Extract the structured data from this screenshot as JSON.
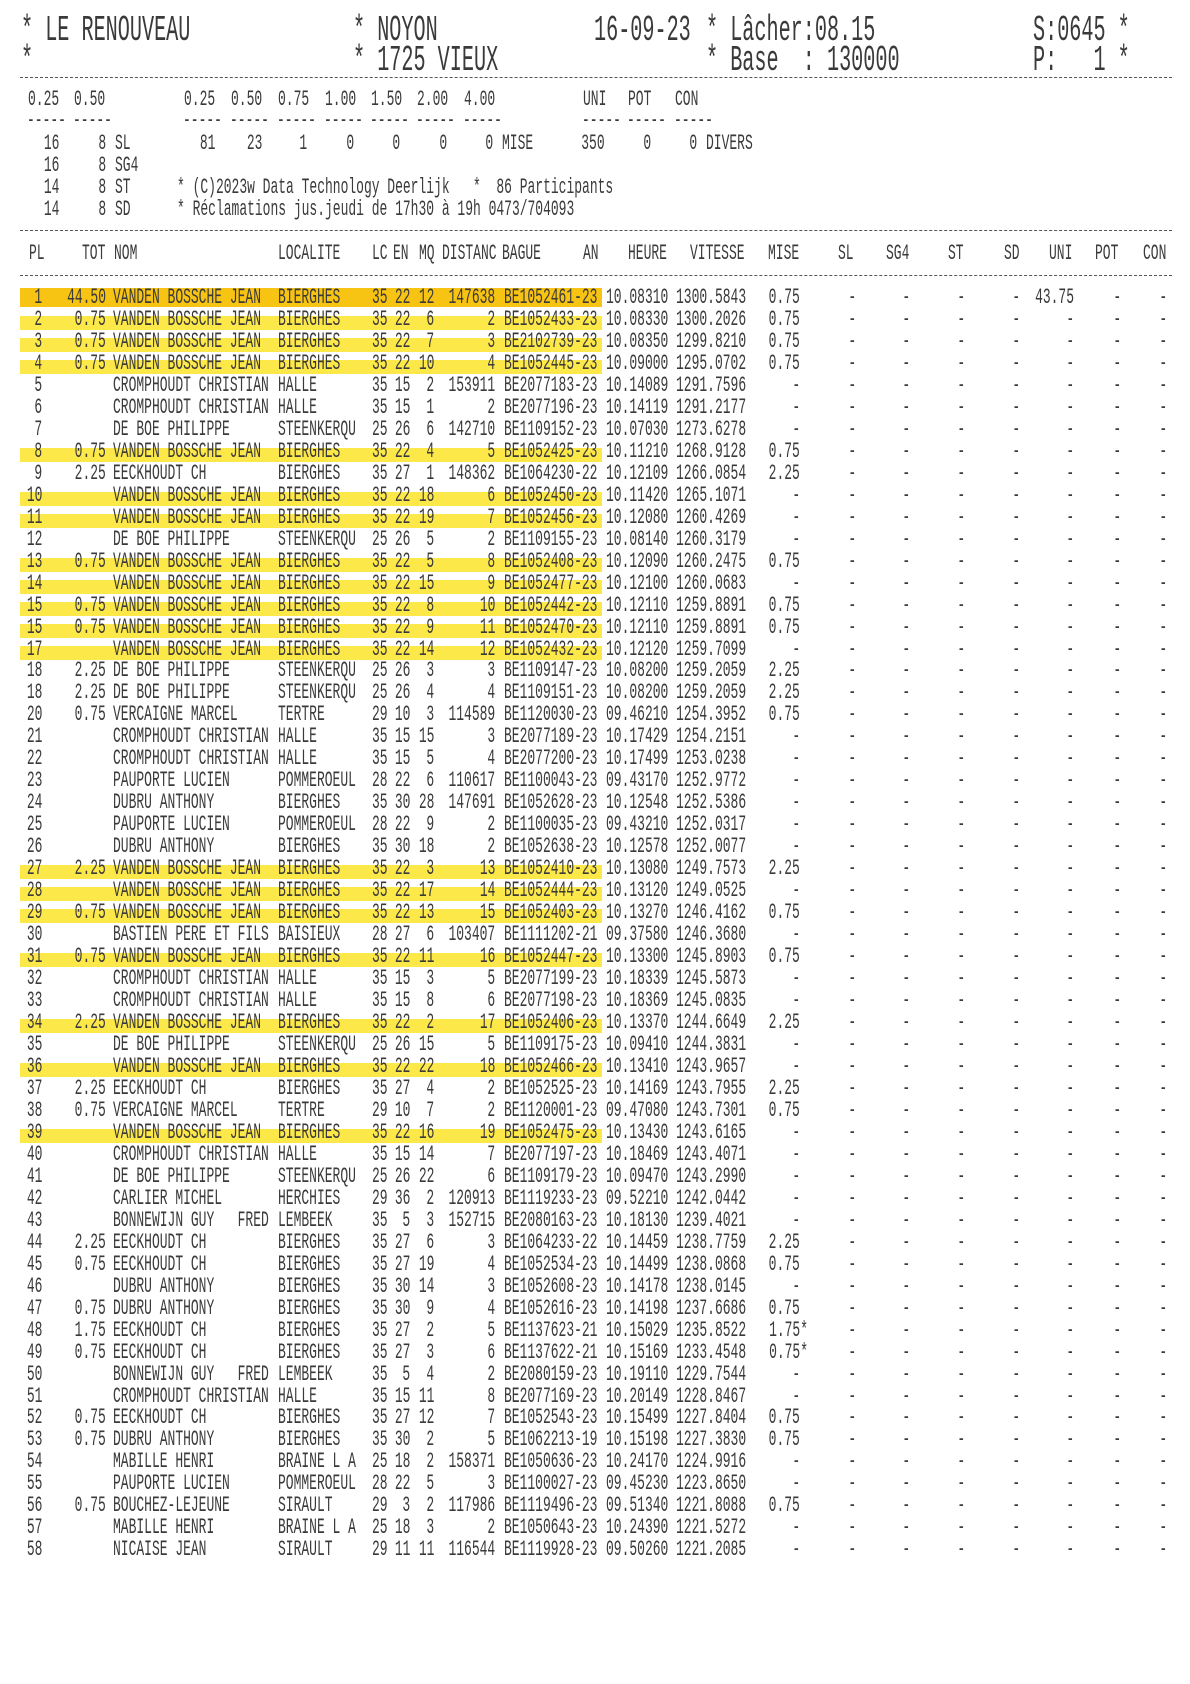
{
  "header": {
    "club": "* LE RENOUVEAU",
    "club_line2": "*",
    "race": "* NOYON",
    "category": "* 1725 VIEUX",
    "date": "16-09-23",
    "release": "* Lâcher:08.15",
    "base": "* Base  : 130000",
    "serial": "S:0645 *",
    "page": "P:   1 *"
  },
  "summary": {
    "stake_labels": [
      "0.25",
      "0.50",
      "0.25",
      "0.50",
      "0.75",
      "1.00",
      "1.50",
      "2.00",
      "4.00",
      "UNI",
      "POT",
      "CON"
    ],
    "underline": "-----",
    "rows": [
      {
        "a": "16",
        "b": "8",
        "label": "SL",
        "stakes": [
          "81",
          "23",
          "1",
          "0",
          "0",
          "0",
          "0"
        ],
        "stakes_label": "MISE",
        "extras": [
          "350",
          "0",
          "0"
        ],
        "extras_label": "DIVERS"
      },
      {
        "a": "16",
        "b": "8",
        "label": "SG4"
      },
      {
        "a": "14",
        "b": "8",
        "label": "ST"
      },
      {
        "a": "14",
        "b": "8",
        "label": "SD"
      }
    ],
    "copyright": "* (C)2023w Data Technology Deerlijk   *  86 Participants",
    "claims": "* Réclamations jus.jeudi de 17h30 à 19h 0473/704093"
  },
  "columns": [
    "PL",
    "TOT",
    "NOM",
    "LOCALITE",
    "LC",
    "EN",
    "MQ",
    "DISTANC",
    "BAGUE",
    "AN",
    "HEURE",
    "VITESSE",
    "MISE",
    "SL",
    "SG4",
    "ST",
    "SD",
    "UNI",
    "POT",
    "CON"
  ],
  "colors": {
    "highlight_first": "#f8c414",
    "highlight": "#fde84a",
    "text": "#3a3a3a"
  },
  "highlight_first_rows": [
    0
  ],
  "highlight_rows": [
    1,
    2,
    3,
    7,
    9,
    10,
    12,
    13,
    14,
    15,
    16,
    26,
    27,
    28,
    30,
    33,
    35,
    38
  ],
  "rows": [
    [
      "1",
      "44.50",
      "VANDEN BOSSCHE JEAN",
      "BIERGHES",
      "35",
      "22",
      "12",
      "147638",
      "BE1052461-23",
      "10.08310",
      "1300.5843",
      "0.75",
      "-",
      "-",
      "-",
      "-",
      "43.75",
      "-",
      "-"
    ],
    [
      "2",
      "0.75",
      "VANDEN BOSSCHE JEAN",
      "BIERGHES",
      "35",
      "22",
      "6",
      "2",
      "BE1052433-23",
      "10.08330",
      "1300.2026",
      "0.75",
      "-",
      "-",
      "-",
      "-",
      "-",
      "-",
      "-"
    ],
    [
      "3",
      "0.75",
      "VANDEN BOSSCHE JEAN",
      "BIERGHES",
      "35",
      "22",
      "7",
      "3",
      "BE2102739-23",
      "10.08350",
      "1299.8210",
      "0.75",
      "-",
      "-",
      "-",
      "-",
      "-",
      "-",
      "-"
    ],
    [
      "4",
      "0.75",
      "VANDEN BOSSCHE JEAN",
      "BIERGHES",
      "35",
      "22",
      "10",
      "4",
      "BE1052445-23",
      "10.09000",
      "1295.0702",
      "0.75",
      "-",
      "-",
      "-",
      "-",
      "-",
      "-",
      "-"
    ],
    [
      "5",
      "",
      "CROMPHOUDT CHRISTIAN",
      "HALLE",
      "35",
      "15",
      "2",
      "153911",
      "BE2077183-23",
      "10.14089",
      "1291.7596",
      "-",
      "-",
      "-",
      "-",
      "-",
      "-",
      "-",
      "-"
    ],
    [
      "6",
      "",
      "CROMPHOUDT CHRISTIAN",
      "HALLE",
      "35",
      "15",
      "1",
      "2",
      "BE2077196-23",
      "10.14119",
      "1291.2177",
      "-",
      "-",
      "-",
      "-",
      "-",
      "-",
      "-",
      "-"
    ],
    [
      "7",
      "",
      "DE BOE PHILIPPE",
      "STEENKERQU",
      "25",
      "26",
      "6",
      "142710",
      "BE1109152-23",
      "10.07030",
      "1273.6278",
      "-",
      "-",
      "-",
      "-",
      "-",
      "-",
      "-",
      "-"
    ],
    [
      "8",
      "0.75",
      "VANDEN BOSSCHE JEAN",
      "BIERGHES",
      "35",
      "22",
      "4",
      "5",
      "BE1052425-23",
      "10.11210",
      "1268.9128",
      "0.75",
      "-",
      "-",
      "-",
      "-",
      "-",
      "-",
      "-"
    ],
    [
      "9",
      "2.25",
      "EECKHOUDT CH",
      "BIERGHES",
      "35",
      "27",
      "1",
      "148362",
      "BE1064230-22",
      "10.12109",
      "1266.0854",
      "2.25",
      "-",
      "-",
      "-",
      "-",
      "-",
      "-",
      "-"
    ],
    [
      "10",
      "",
      "VANDEN BOSSCHE JEAN",
      "BIERGHES",
      "35",
      "22",
      "18",
      "6",
      "BE1052450-23",
      "10.11420",
      "1265.1071",
      "-",
      "-",
      "-",
      "-",
      "-",
      "-",
      "-",
      "-"
    ],
    [
      "11",
      "",
      "VANDEN BOSSCHE JEAN",
      "BIERGHES",
      "35",
      "22",
      "19",
      "7",
      "BE1052456-23",
      "10.12080",
      "1260.4269",
      "-",
      "-",
      "-",
      "-",
      "-",
      "-",
      "-",
      "-"
    ],
    [
      "12",
      "",
      "DE BOE PHILIPPE",
      "STEENKERQU",
      "25",
      "26",
      "5",
      "2",
      "BE1109155-23",
      "10.08140",
      "1260.3179",
      "-",
      "-",
      "-",
      "-",
      "-",
      "-",
      "-",
      "-"
    ],
    [
      "13",
      "0.75",
      "VANDEN BOSSCHE JEAN",
      "BIERGHES",
      "35",
      "22",
      "5",
      "8",
      "BE1052408-23",
      "10.12090",
      "1260.2475",
      "0.75",
      "-",
      "-",
      "-",
      "-",
      "-",
      "-",
      "-"
    ],
    [
      "14",
      "",
      "VANDEN BOSSCHE JEAN",
      "BIERGHES",
      "35",
      "22",
      "15",
      "9",
      "BE1052477-23",
      "10.12100",
      "1260.0683",
      "-",
      "-",
      "-",
      "-",
      "-",
      "-",
      "-",
      "-"
    ],
    [
      "15",
      "0.75",
      "VANDEN BOSSCHE JEAN",
      "BIERGHES",
      "35",
      "22",
      "8",
      "10",
      "BE1052442-23",
      "10.12110",
      "1259.8891",
      "0.75",
      "-",
      "-",
      "-",
      "-",
      "-",
      "-",
      "-"
    ],
    [
      "15",
      "0.75",
      "VANDEN BOSSCHE JEAN",
      "BIERGHES",
      "35",
      "22",
      "9",
      "11",
      "BE1052470-23",
      "10.12110",
      "1259.8891",
      "0.75",
      "-",
      "-",
      "-",
      "-",
      "-",
      "-",
      "-"
    ],
    [
      "17",
      "",
      "VANDEN BOSSCHE JEAN",
      "BIERGHES",
      "35",
      "22",
      "14",
      "12",
      "BE1052432-23",
      "10.12120",
      "1259.7099",
      "-",
      "-",
      "-",
      "-",
      "-",
      "-",
      "-",
      "-"
    ],
    [
      "18",
      "2.25",
      "DE BOE PHILIPPE",
      "STEENKERQU",
      "25",
      "26",
      "3",
      "3",
      "BE1109147-23",
      "10.08200",
      "1259.2059",
      "2.25",
      "-",
      "-",
      "-",
      "-",
      "-",
      "-",
      "-"
    ],
    [
      "18",
      "2.25",
      "DE BOE PHILIPPE",
      "STEENKERQU",
      "25",
      "26",
      "4",
      "4",
      "BE1109151-23",
      "10.08200",
      "1259.2059",
      "2.25",
      "-",
      "-",
      "-",
      "-",
      "-",
      "-",
      "-"
    ],
    [
      "20",
      "0.75",
      "VERCAIGNE MARCEL",
      "TERTRE",
      "29",
      "10",
      "3",
      "114589",
      "BE1120030-23",
      "09.46210",
      "1254.3952",
      "0.75",
      "-",
      "-",
      "-",
      "-",
      "-",
      "-",
      "-"
    ],
    [
      "21",
      "",
      "CROMPHOUDT CHRISTIAN",
      "HALLE",
      "35",
      "15",
      "15",
      "3",
      "BE2077189-23",
      "10.17429",
      "1254.2151",
      "-",
      "-",
      "-",
      "-",
      "-",
      "-",
      "-",
      "-"
    ],
    [
      "22",
      "",
      "CROMPHOUDT CHRISTIAN",
      "HALLE",
      "35",
      "15",
      "5",
      "4",
      "BE2077200-23",
      "10.17499",
      "1253.0238",
      "-",
      "-",
      "-",
      "-",
      "-",
      "-",
      "-",
      "-"
    ],
    [
      "23",
      "",
      "PAUPORTE LUCIEN",
      "POMMEROEUL",
      "28",
      "22",
      "6",
      "110617",
      "BE1100043-23",
      "09.43170",
      "1252.9772",
      "-",
      "-",
      "-",
      "-",
      "-",
      "-",
      "-",
      "-"
    ],
    [
      "24",
      "",
      "DUBRU ANTHONY",
      "BIERGHES",
      "35",
      "30",
      "28",
      "147691",
      "BE1052628-23",
      "10.12548",
      "1252.5386",
      "-",
      "-",
      "-",
      "-",
      "-",
      "-",
      "-",
      "-"
    ],
    [
      "25",
      "",
      "PAUPORTE LUCIEN",
      "POMMEROEUL",
      "28",
      "22",
      "9",
      "2",
      "BE1100035-23",
      "09.43210",
      "1252.0317",
      "-",
      "-",
      "-",
      "-",
      "-",
      "-",
      "-",
      "-"
    ],
    [
      "26",
      "",
      "DUBRU ANTHONY",
      "BIERGHES",
      "35",
      "30",
      "18",
      "2",
      "BE1052638-23",
      "10.12578",
      "1252.0077",
      "-",
      "-",
      "-",
      "-",
      "-",
      "-",
      "-",
      "-"
    ],
    [
      "27",
      "2.25",
      "VANDEN BOSSCHE JEAN",
      "BIERGHES",
      "35",
      "22",
      "3",
      "13",
      "BE1052410-23",
      "10.13080",
      "1249.7573",
      "2.25",
      "-",
      "-",
      "-",
      "-",
      "-",
      "-",
      "-"
    ],
    [
      "28",
      "",
      "VANDEN BOSSCHE JEAN",
      "BIERGHES",
      "35",
      "22",
      "17",
      "14",
      "BE1052444-23",
      "10.13120",
      "1249.0525",
      "-",
      "-",
      "-",
      "-",
      "-",
      "-",
      "-",
      "-"
    ],
    [
      "29",
      "0.75",
      "VANDEN BOSSCHE JEAN",
      "BIERGHES",
      "35",
      "22",
      "13",
      "15",
      "BE1052403-23",
      "10.13270",
      "1246.4162",
      "0.75",
      "-",
      "-",
      "-",
      "-",
      "-",
      "-",
      "-"
    ],
    [
      "30",
      "",
      "BASTIEN PERE ET FILS",
      "BAISIEUX",
      "28",
      "27",
      "6",
      "103407",
      "BE1111202-21",
      "09.37580",
      "1246.3680",
      "-",
      "-",
      "-",
      "-",
      "-",
      "-",
      "-",
      "-"
    ],
    [
      "31",
      "0.75",
      "VANDEN BOSSCHE JEAN",
      "BIERGHES",
      "35",
      "22",
      "11",
      "16",
      "BE1052447-23",
      "10.13300",
      "1245.8903",
      "0.75",
      "-",
      "-",
      "-",
      "-",
      "-",
      "-",
      "-"
    ],
    [
      "32",
      "",
      "CROMPHOUDT CHRISTIAN",
      "HALLE",
      "35",
      "15",
      "3",
      "5",
      "BE2077199-23",
      "10.18339",
      "1245.5873",
      "-",
      "-",
      "-",
      "-",
      "-",
      "-",
      "-",
      "-"
    ],
    [
      "33",
      "",
      "CROMPHOUDT CHRISTIAN",
      "HALLE",
      "35",
      "15",
      "8",
      "6",
      "BE2077198-23",
      "10.18369",
      "1245.0835",
      "-",
      "-",
      "-",
      "-",
      "-",
      "-",
      "-",
      "-"
    ],
    [
      "34",
      "2.25",
      "VANDEN BOSSCHE JEAN",
      "BIERGHES",
      "35",
      "22",
      "2",
      "17",
      "BE1052406-23",
      "10.13370",
      "1244.6649",
      "2.25",
      "-",
      "-",
      "-",
      "-",
      "-",
      "-",
      "-"
    ],
    [
      "35",
      "",
      "DE BOE PHILIPPE",
      "STEENKERQU",
      "25",
      "26",
      "15",
      "5",
      "BE1109175-23",
      "10.09410",
      "1244.3831",
      "-",
      "-",
      "-",
      "-",
      "-",
      "-",
      "-",
      "-"
    ],
    [
      "36",
      "",
      "VANDEN BOSSCHE JEAN",
      "BIERGHES",
      "35",
      "22",
      "22",
      "18",
      "BE1052466-23",
      "10.13410",
      "1243.9657",
      "-",
      "-",
      "-",
      "-",
      "-",
      "-",
      "-",
      "-"
    ],
    [
      "37",
      "2.25",
      "EECKHOUDT CH",
      "BIERGHES",
      "35",
      "27",
      "4",
      "2",
      "BE1052525-23",
      "10.14169",
      "1243.7955",
      "2.25",
      "-",
      "-",
      "-",
      "-",
      "-",
      "-",
      "-"
    ],
    [
      "38",
      "0.75",
      "VERCAIGNE MARCEL",
      "TERTRE",
      "29",
      "10",
      "7",
      "2",
      "BE1120001-23",
      "09.47080",
      "1243.7301",
      "0.75",
      "-",
      "-",
      "-",
      "-",
      "-",
      "-",
      "-"
    ],
    [
      "39",
      "",
      "VANDEN BOSSCHE JEAN",
      "BIERGHES",
      "35",
      "22",
      "16",
      "19",
      "BE1052475-23",
      "10.13430",
      "1243.6165",
      "-",
      "-",
      "-",
      "-",
      "-",
      "-",
      "-",
      "-"
    ],
    [
      "40",
      "",
      "CROMPHOUDT CHRISTIAN",
      "HALLE",
      "35",
      "15",
      "14",
      "7",
      "BE2077197-23",
      "10.18469",
      "1243.4071",
      "-",
      "-",
      "-",
      "-",
      "-",
      "-",
      "-",
      "-"
    ],
    [
      "41",
      "",
      "DE BOE PHILIPPE",
      "STEENKERQU",
      "25",
      "26",
      "22",
      "6",
      "BE1109179-23",
      "10.09470",
      "1243.2990",
      "-",
      "-",
      "-",
      "-",
      "-",
      "-",
      "-",
      "-"
    ],
    [
      "42",
      "",
      "CARLIER MICHEL",
      "HERCHIES",
      "29",
      "36",
      "2",
      "120913",
      "BE1119233-23",
      "09.52210",
      "1242.0442",
      "-",
      "-",
      "-",
      "-",
      "-",
      "-",
      "-",
      "-"
    ],
    [
      "43",
      "",
      "BONNEWIJN GUY   FRED",
      "LEMBEEK",
      "35",
      "5",
      "3",
      "152715",
      "BE2080163-23",
      "10.18130",
      "1239.4021",
      "-",
      "-",
      "-",
      "-",
      "-",
      "-",
      "-",
      "-"
    ],
    [
      "44",
      "2.25",
      "EECKHOUDT CH",
      "BIERGHES",
      "35",
      "27",
      "6",
      "3",
      "BE1064233-22",
      "10.14459",
      "1238.7759",
      "2.25",
      "-",
      "-",
      "-",
      "-",
      "-",
      "-",
      "-"
    ],
    [
      "45",
      "0.75",
      "EECKHOUDT CH",
      "BIERGHES",
      "35",
      "27",
      "19",
      "4",
      "BE1052534-23",
      "10.14499",
      "1238.0868",
      "0.75",
      "-",
      "-",
      "-",
      "-",
      "-",
      "-",
      "-"
    ],
    [
      "46",
      "",
      "DUBRU ANTHONY",
      "BIERGHES",
      "35",
      "30",
      "14",
      "3",
      "BE1052608-23",
      "10.14178",
      "1238.0145",
      "-",
      "-",
      "-",
      "-",
      "-",
      "-",
      "-",
      "-"
    ],
    [
      "47",
      "0.75",
      "DUBRU ANTHONY",
      "BIERGHES",
      "35",
      "30",
      "9",
      "4",
      "BE1052616-23",
      "10.14198",
      "1237.6686",
      "0.75",
      "-",
      "-",
      "-",
      "-",
      "-",
      "-",
      "-"
    ],
    [
      "48",
      "1.75",
      "EECKHOUDT CH",
      "BIERGHES",
      "35",
      "27",
      "2",
      "5",
      "BE1137623-21",
      "10.15029",
      "1235.8522",
      "1.75*",
      "-",
      "-",
      "-",
      "-",
      "-",
      "-",
      "-"
    ],
    [
      "49",
      "0.75",
      "EECKHOUDT CH",
      "BIERGHES",
      "35",
      "27",
      "3",
      "6",
      "BE1137622-21",
      "10.15169",
      "1233.4548",
      "0.75*",
      "-",
      "-",
      "-",
      "-",
      "-",
      "-",
      "-"
    ],
    [
      "50",
      "",
      "BONNEWIJN GUY   FRED",
      "LEMBEEK",
      "35",
      "5",
      "4",
      "2",
      "BE2080159-23",
      "10.19110",
      "1229.7544",
      "-",
      "-",
      "-",
      "-",
      "-",
      "-",
      "-",
      "-"
    ],
    [
      "51",
      "",
      "CROMPHOUDT CHRISTIAN",
      "HALLE",
      "35",
      "15",
      "11",
      "8",
      "BE2077169-23",
      "10.20149",
      "1228.8467",
      "-",
      "-",
      "-",
      "-",
      "-",
      "-",
      "-",
      "-"
    ],
    [
      "52",
      "0.75",
      "EECKHOUDT CH",
      "BIERGHES",
      "35",
      "27",
      "12",
      "7",
      "BE1052543-23",
      "10.15499",
      "1227.8404",
      "0.75",
      "-",
      "-",
      "-",
      "-",
      "-",
      "-",
      "-"
    ],
    [
      "53",
      "0.75",
      "DUBRU ANTHONY",
      "BIERGHES",
      "35",
      "30",
      "2",
      "5",
      "BE1062213-19",
      "10.15198",
      "1227.3830",
      "0.75",
      "-",
      "-",
      "-",
      "-",
      "-",
      "-",
      "-"
    ],
    [
      "54",
      "",
      "MABILLE HENRI",
      "BRAINE L A",
      "25",
      "18",
      "2",
      "158371",
      "BE1050636-23",
      "10.24170",
      "1224.9916",
      "-",
      "-",
      "-",
      "-",
      "-",
      "-",
      "-",
      "-"
    ],
    [
      "55",
      "",
      "PAUPORTE LUCIEN",
      "POMMEROEUL",
      "28",
      "22",
      "5",
      "3",
      "BE1100027-23",
      "09.45230",
      "1223.8650",
      "-",
      "-",
      "-",
      "-",
      "-",
      "-",
      "-",
      "-"
    ],
    [
      "56",
      "0.75",
      "BOUCHEZ-LEJEUNE",
      "SIRAULT",
      "29",
      "3",
      "2",
      "117986",
      "BE1119496-23",
      "09.51340",
      "1221.8088",
      "0.75",
      "-",
      "-",
      "-",
      "-",
      "-",
      "-",
      "-"
    ],
    [
      "57",
      "",
      "MABILLE HENRI",
      "BRAINE L A",
      "25",
      "18",
      "3",
      "2",
      "BE1050643-23",
      "10.24390",
      "1221.5272",
      "-",
      "-",
      "-",
      "-",
      "-",
      "-",
      "-",
      "-"
    ],
    [
      "58",
      "",
      "NICAISE JEAN",
      "SIRAULT",
      "29",
      "11",
      "11",
      "116544",
      "BE1119928-23",
      "09.50260",
      "1221.2085",
      "-",
      "-",
      "-",
      "-",
      "-",
      "-",
      "-",
      "-"
    ]
  ]
}
